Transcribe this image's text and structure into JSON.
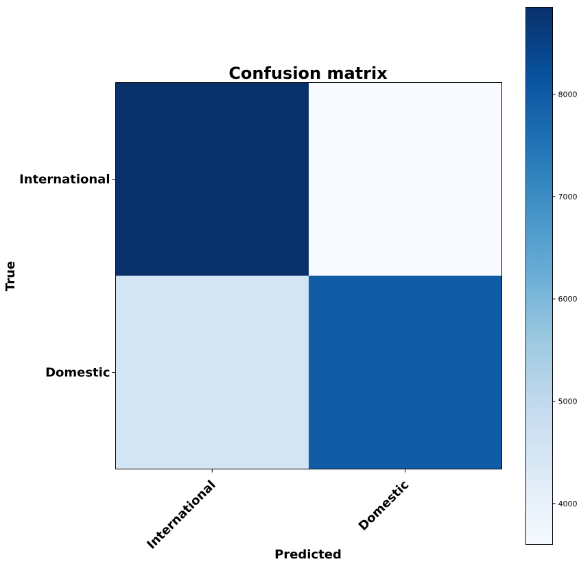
{
  "chart_data": {
    "type": "heatmap",
    "title": "Confusion matrix",
    "xlabel": "Predicted",
    "ylabel": "True",
    "x_categories": [
      "International",
      "Domestic"
    ],
    "y_categories": [
      "International",
      "Domestic"
    ],
    "values": [
      [
        8850,
        3600
      ],
      [
        4550,
        7950
      ]
    ],
    "colormap": "Blues",
    "colorbar": {
      "range": [
        3600,
        8850
      ],
      "ticks": [
        4000,
        5000,
        6000,
        7000,
        8000
      ],
      "tick_labels": [
        "4000",
        "5000",
        "6000",
        "7000",
        "8000"
      ]
    },
    "grid": false
  }
}
